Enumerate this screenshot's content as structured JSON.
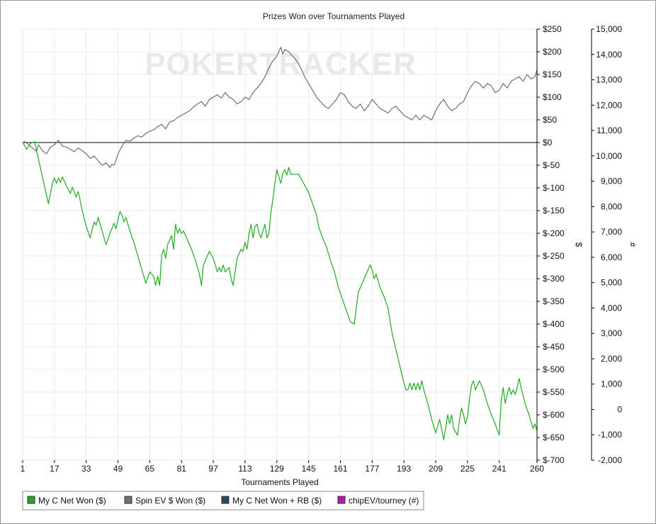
{
  "chart_data": {
    "type": "line",
    "title": "Prizes Won over Tournaments Played",
    "watermark": "POKERTRACKER",
    "xlabel": "Tournaments Played",
    "ylabel": "$",
    "y2label": "#",
    "xlim": [
      1,
      260
    ],
    "ylim": [
      -700,
      250
    ],
    "y2lim": [
      -2000,
      15000
    ],
    "xticks": [
      "1",
      "17",
      "33",
      "49",
      "65",
      "81",
      "97",
      "113",
      "129",
      "145",
      "161",
      "177",
      "193",
      "209",
      "225",
      "241",
      "260"
    ],
    "xtick_values": [
      1,
      17,
      33,
      49,
      65,
      81,
      97,
      113,
      129,
      145,
      161,
      177,
      193,
      209,
      225,
      241,
      260
    ],
    "yticks": [
      "$250",
      "$200",
      "$150",
      "$100",
      "$50",
      "$0",
      "$-50",
      "$-100",
      "$-150",
      "$-200",
      "$-250",
      "$-300",
      "$-350",
      "$-400",
      "$-450",
      "$-500",
      "$-550",
      "$-600",
      "$-650",
      "$-700"
    ],
    "ytick_values": [
      250,
      200,
      150,
      100,
      50,
      0,
      -50,
      -100,
      -150,
      -200,
      -250,
      -300,
      -350,
      -400,
      -450,
      -500,
      -550,
      -600,
      -650,
      -700
    ],
    "y2ticks": [
      "15,000",
      "14,000",
      "13,000",
      "12,000",
      "11,000",
      "10,000",
      "9,000",
      "8,000",
      "7,000",
      "6,000",
      "5,000",
      "4,000",
      "3,000",
      "2,000",
      "1,000",
      "0",
      "-1,000",
      "-2,000"
    ],
    "y2tick_values": [
      15000,
      14000,
      13000,
      12000,
      11000,
      10000,
      9000,
      8000,
      7000,
      6000,
      5000,
      4000,
      3000,
      2000,
      1000,
      0,
      -1000,
      -2000
    ],
    "grid": true,
    "legend_position": "bottom-left",
    "series": [
      {
        "name": "My C Net Won ($)",
        "color": "#22aa22",
        "x": [
          1,
          3,
          5,
          7,
          14,
          16,
          17,
          18,
          19,
          20,
          21,
          23,
          25,
          26,
          27,
          28,
          29,
          31,
          33,
          35,
          37,
          38,
          39,
          41,
          43,
          45,
          47,
          48,
          49,
          50,
          51,
          52,
          53,
          55,
          57,
          59,
          61,
          63,
          65,
          67,
          68,
          69,
          70,
          71,
          72,
          73,
          74,
          76,
          77,
          78,
          79,
          80,
          81,
          82,
          84,
          86,
          88,
          90,
          91,
          92,
          93,
          95,
          97,
          98,
          99,
          100,
          101,
          102,
          103,
          105,
          106,
          107,
          108,
          109,
          110,
          111,
          112,
          113,
          114,
          115,
          116,
          117,
          118,
          119,
          120,
          121,
          122,
          123,
          124,
          125,
          126,
          127,
          128,
          129,
          130,
          131,
          132,
          133,
          134,
          135,
          136,
          140,
          145,
          149,
          150,
          152,
          154,
          156,
          158,
          160,
          162,
          164,
          166,
          168,
          170,
          172,
          174,
          176,
          177,
          178,
          179,
          181,
          183,
          185,
          187,
          190,
          193,
          194,
          195,
          196,
          197,
          198,
          199,
          200,
          201,
          202,
          203,
          205,
          207,
          209,
          210,
          211,
          213,
          214,
          215,
          216,
          217,
          218,
          220,
          221,
          222,
          223,
          224,
          225,
          226,
          227,
          228,
          229,
          231,
          233,
          235,
          237,
          239,
          241,
          242,
          243,
          244,
          245,
          246,
          247,
          248,
          249,
          250,
          251,
          252,
          254,
          256,
          258,
          259,
          260
        ],
        "y": [
          0,
          -15,
          -2,
          2,
          -135,
          -90,
          -78,
          -90,
          -78,
          -88,
          -76,
          -95,
          -112,
          -98,
          -110,
          -120,
          -108,
          -150,
          -185,
          -210,
          -175,
          -182,
          -165,
          -195,
          -225,
          -200,
          -178,
          -190,
          -170,
          -152,
          -160,
          -175,
          -165,
          -195,
          -220,
          -250,
          -280,
          -310,
          -285,
          -295,
          -315,
          -295,
          -315,
          -248,
          -235,
          -255,
          -225,
          -205,
          -235,
          -180,
          -200,
          -190,
          -200,
          -195,
          -215,
          -235,
          -260,
          -290,
          -315,
          -270,
          -260,
          -240,
          -255,
          -270,
          -285,
          -275,
          -285,
          -270,
          -285,
          -275,
          -300,
          -315,
          -285,
          -255,
          -245,
          -235,
          -240,
          -220,
          -235,
          -200,
          -180,
          -210,
          -185,
          -180,
          -200,
          -210,
          -195,
          -180,
          -210,
          -200,
          -155,
          -125,
          -90,
          -60,
          -75,
          -90,
          -68,
          -60,
          -72,
          -55,
          -70,
          -70,
          -110,
          -160,
          -185,
          -210,
          -230,
          -260,
          -285,
          -320,
          -345,
          -370,
          -395,
          -400,
          -330,
          -310,
          -290,
          -270,
          -280,
          -300,
          -290,
          -320,
          -340,
          -365,
          -420,
          -475,
          -530,
          -545,
          -545,
          -530,
          -545,
          -530,
          -545,
          -530,
          -545,
          -525,
          -545,
          -575,
          -610,
          -640,
          -625,
          -610,
          -655,
          -630,
          -600,
          -620,
          -600,
          -630,
          -645,
          -610,
          -585,
          -600,
          -620,
          -605,
          -565,
          -535,
          -525,
          -545,
          -525,
          -545,
          -575,
          -600,
          -620,
          -645,
          -570,
          -540,
          -575,
          -555,
          -540,
          -555,
          -545,
          -555,
          -540,
          -520,
          -540,
          -575,
          -600,
          -630,
          -620,
          -635
        ]
      },
      {
        "name": "Spin EV $ Won ($)",
        "color": "#707070",
        "x": [
          1,
          2,
          4,
          6,
          8,
          9,
          11,
          13,
          15,
          17,
          18,
          19,
          21,
          23,
          25,
          27,
          29,
          31,
          33,
          35,
          37,
          39,
          41,
          43,
          45,
          46,
          47,
          48,
          49,
          51,
          53,
          55,
          57,
          59,
          61,
          63,
          65,
          67,
          69,
          71,
          73,
          75,
          77,
          79,
          81,
          83,
          85,
          87,
          89,
          91,
          93,
          95,
          97,
          99,
          101,
          103,
          105,
          107,
          109,
          111,
          113,
          115,
          117,
          119,
          121,
          123,
          125,
          127,
          129,
          130,
          131,
          132,
          133,
          135,
          137,
          139,
          141,
          143,
          145,
          147,
          149,
          151,
          153,
          155,
          157,
          159,
          161,
          163,
          165,
          167,
          169,
          171,
          173,
          175,
          177,
          179,
          181,
          183,
          185,
          187,
          189,
          191,
          193,
          195,
          197,
          199,
          201,
          203,
          205,
          207,
          209,
          211,
          213,
          215,
          217,
          219,
          221,
          223,
          225,
          227,
          229,
          231,
          233,
          235,
          237,
          239,
          241,
          243,
          245,
          247,
          249,
          251,
          253,
          255,
          257,
          259,
          260
        ],
        "y": [
          0,
          2,
          -5,
          -12,
          -20,
          -5,
          -18,
          -25,
          -10,
          -5,
          0,
          5,
          -8,
          -10,
          -15,
          -20,
          -12,
          -18,
          -25,
          -35,
          -30,
          -40,
          -50,
          -45,
          -55,
          -48,
          -50,
          -40,
          -25,
          -8,
          5,
          3,
          10,
          15,
          12,
          20,
          25,
          28,
          35,
          40,
          30,
          45,
          48,
          55,
          60,
          65,
          70,
          78,
          85,
          90,
          80,
          95,
          100,
          105,
          98,
          110,
          100,
          95,
          85,
          90,
          100,
          95,
          110,
          120,
          130,
          145,
          165,
          180,
          190,
          200,
          210,
          195,
          205,
          200,
          190,
          180,
          165,
          145,
          130,
          115,
          100,
          90,
          80,
          75,
          85,
          95,
          110,
          105,
          90,
          80,
          75,
          85,
          70,
          80,
          95,
          85,
          75,
          70,
          65,
          75,
          80,
          70,
          60,
          55,
          50,
          60,
          50,
          60,
          55,
          50,
          70,
          85,
          95,
          80,
          70,
          75,
          85,
          90,
          110,
          125,
          135,
          130,
          120,
          130,
          125,
          110,
          115,
          130,
          120,
          135,
          140,
          145,
          135,
          150,
          140,
          145,
          160
        ]
      },
      {
        "name": "My C Net Won + RB ($)",
        "color": "#1f4e5a",
        "x": [],
        "y": []
      },
      {
        "name": "chipEV/tourney (#)",
        "color": "#b21ab2",
        "x": [],
        "y": []
      }
    ]
  }
}
